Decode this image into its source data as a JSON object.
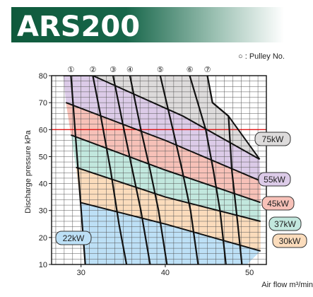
{
  "title": "ARS200",
  "legend_note": "○ : Pulley No.",
  "reference_line_color": "#e00000",
  "chart_data": {
    "type": "area",
    "title": "ARS200",
    "xlabel": "Air flow  m³/min",
    "ylabel": "Discharge pressure kPa",
    "xlim": [
      26.5,
      52
    ],
    "ylim": [
      10,
      80
    ],
    "x_ticks": [
      30,
      40,
      50
    ],
    "y_ticks": [
      10,
      20,
      30,
      40,
      50,
      60,
      70,
      80
    ],
    "grid": true,
    "reference_line": {
      "y": 60
    },
    "pulleys": [
      {
        "label": "①",
        "points": [
          [
            28.8,
            80
          ],
          [
            30.5,
            10
          ]
        ]
      },
      {
        "label": "②",
        "points": [
          [
            31.4,
            80
          ],
          [
            32.4,
            64
          ],
          [
            33.5,
            45
          ],
          [
            34.5,
            25
          ],
          [
            35.4,
            10
          ]
        ]
      },
      {
        "label": "③",
        "points": [
          [
            33.8,
            80
          ],
          [
            35.1,
            60
          ],
          [
            36.1,
            45
          ],
          [
            37.1,
            30
          ],
          [
            38.2,
            10
          ]
        ]
      },
      {
        "label": "④",
        "points": [
          [
            35.8,
            80
          ],
          [
            37.1,
            60
          ],
          [
            38.2,
            45
          ],
          [
            39.2,
            30
          ],
          [
            40.2,
            10
          ]
        ]
      },
      {
        "label": "⑤",
        "points": [
          [
            39.4,
            80
          ],
          [
            40.9,
            60
          ],
          [
            42.0,
            45
          ],
          [
            43.0,
            30
          ],
          [
            43.9,
            10
          ]
        ]
      },
      {
        "label": "⑥",
        "points": [
          [
            42.9,
            80
          ],
          [
            44.8,
            60
          ],
          [
            45.7,
            45
          ],
          [
            46.5,
            30
          ],
          [
            47.2,
            10
          ]
        ]
      },
      {
        "label": "⑦",
        "points": [
          [
            45.0,
            80
          ],
          [
            45.6,
            70
          ],
          [
            47.5,
            65
          ],
          [
            47.9,
            45
          ],
          [
            48.6,
            25
          ],
          [
            49.1,
            10
          ]
        ]
      }
    ],
    "power_bands": [
      {
        "name": "22kW",
        "color": "#bde0f6",
        "lower": [
          [
            30.5,
            10
          ],
          [
            49.7,
            10
          ]
        ],
        "upper": [
          [
            29.9,
            33
          ],
          [
            40,
            25
          ],
          [
            51.3,
            15
          ]
        ]
      },
      {
        "name": "30kW",
        "color": "#fbdcbc",
        "lower": [
          [
            29.9,
            33
          ],
          [
            40,
            25
          ],
          [
            51.3,
            15
          ]
        ],
        "upper": [
          [
            29.4,
            46
          ],
          [
            40,
            35
          ],
          [
            51.3,
            26
          ]
        ]
      },
      {
        "name": "37kW",
        "color": "#c2e8de",
        "lower": [
          [
            29.4,
            46
          ],
          [
            40,
            35
          ],
          [
            51.3,
            26
          ]
        ],
        "upper": [
          [
            28.8,
            58
          ],
          [
            40,
            45
          ],
          [
            51.3,
            33
          ]
        ]
      },
      {
        "name": "45kW",
        "color": "#f7c1b8",
        "lower": [
          [
            28.8,
            58
          ],
          [
            40,
            45
          ],
          [
            51.3,
            33
          ]
        ],
        "upper": [
          [
            28.2,
            70
          ],
          [
            40,
            56
          ],
          [
            51.3,
            41
          ]
        ]
      },
      {
        "name": "55kW",
        "color": "#dccbe8",
        "lower": [
          [
            28.2,
            70
          ],
          [
            40,
            56
          ],
          [
            51.3,
            41
          ]
        ],
        "upper": [
          [
            27.9,
            80
          ],
          [
            31.4,
            80
          ],
          [
            42.1,
            65
          ],
          [
            51.2,
            49
          ]
        ]
      },
      {
        "name": "75kW",
        "color": "#dddbdb",
        "lower": [
          [
            31.4,
            80
          ],
          [
            42.1,
            65
          ],
          [
            51.2,
            49
          ]
        ],
        "upper": [
          [
            45.0,
            80
          ],
          [
            45.6,
            70
          ],
          [
            47.5,
            65
          ],
          [
            51.2,
            49
          ]
        ]
      }
    ]
  }
}
